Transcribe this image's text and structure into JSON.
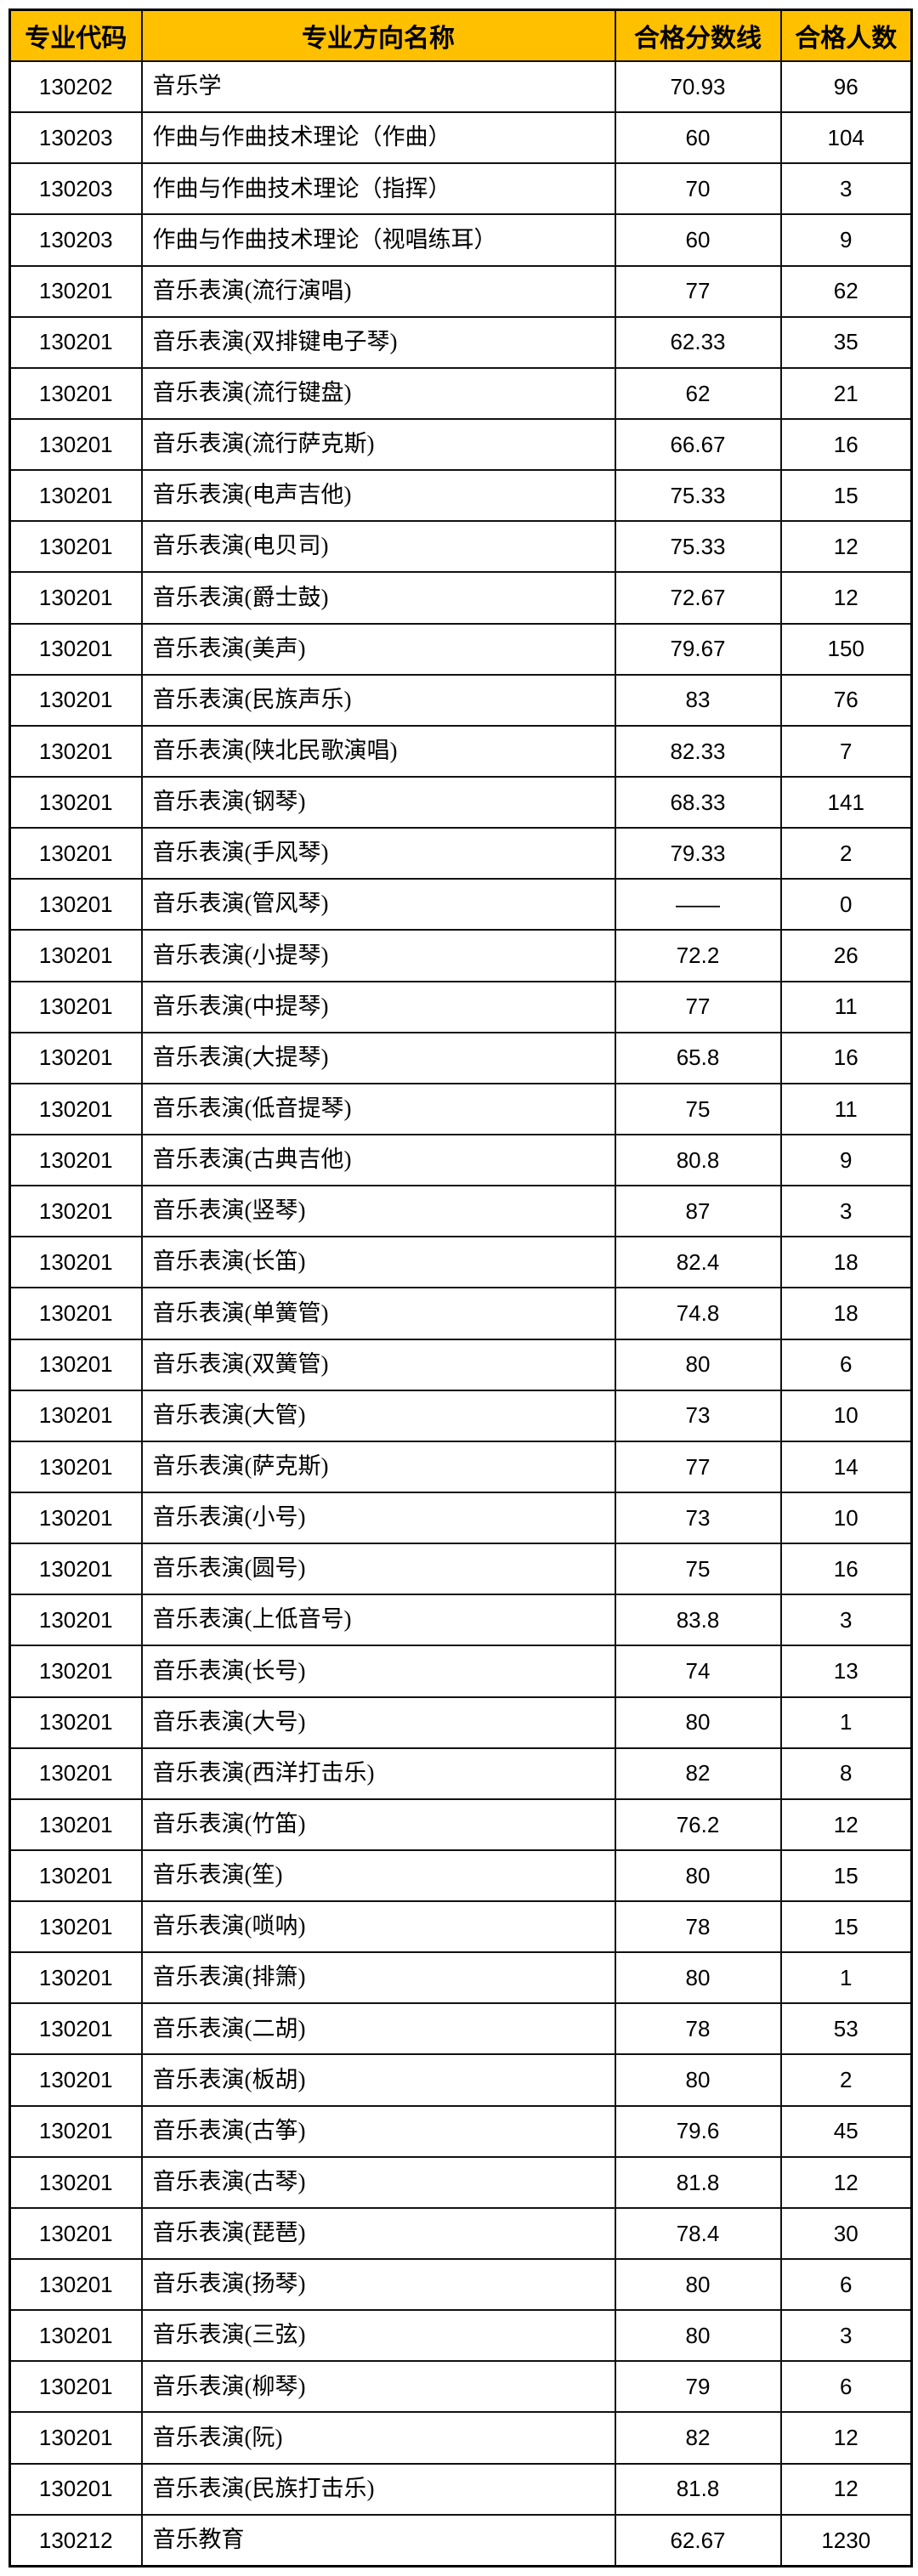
{
  "table": {
    "header_bg": "#FFC000",
    "border_color": "#000000",
    "columns": [
      {
        "label": "专业代码"
      },
      {
        "label": "专业方向名称"
      },
      {
        "label": "合格分数线"
      },
      {
        "label": "合格人数"
      }
    ],
    "rows": [
      {
        "code": "130202",
        "name": "音乐学",
        "score": "70.93",
        "count": "96"
      },
      {
        "code": "130203",
        "name": "作曲与作曲技术理论（作曲）",
        "score": "60",
        "count": "104"
      },
      {
        "code": "130203",
        "name": "作曲与作曲技术理论（指挥）",
        "score": "70",
        "count": "3"
      },
      {
        "code": "130203",
        "name": "作曲与作曲技术理论（视唱练耳）",
        "score": "60",
        "count": "9"
      },
      {
        "code": "130201",
        "name": "音乐表演(流行演唱)",
        "score": "77",
        "count": "62"
      },
      {
        "code": "130201",
        "name": "音乐表演(双排键电子琴)",
        "score": "62.33",
        "count": "35"
      },
      {
        "code": "130201",
        "name": "音乐表演(流行键盘)",
        "score": "62",
        "count": "21"
      },
      {
        "code": "130201",
        "name": "音乐表演(流行萨克斯)",
        "score": "66.67",
        "count": "16"
      },
      {
        "code": "130201",
        "name": "音乐表演(电声吉他)",
        "score": "75.33",
        "count": "15"
      },
      {
        "code": "130201",
        "name": "音乐表演(电贝司)",
        "score": "75.33",
        "count": "12"
      },
      {
        "code": "130201",
        "name": "音乐表演(爵士鼓)",
        "score": "72.67",
        "count": "12"
      },
      {
        "code": "130201",
        "name": "音乐表演(美声)",
        "score": "79.67",
        "count": "150"
      },
      {
        "code": "130201",
        "name": "音乐表演(民族声乐)",
        "score": "83",
        "count": "76"
      },
      {
        "code": "130201",
        "name": "音乐表演(陕北民歌演唱)",
        "score": "82.33",
        "count": "7"
      },
      {
        "code": "130201",
        "name": "音乐表演(钢琴)",
        "score": "68.33",
        "count": "141"
      },
      {
        "code": "130201",
        "name": "音乐表演(手风琴)",
        "score": "79.33",
        "count": "2"
      },
      {
        "code": "130201",
        "name": "音乐表演(管风琴)",
        "score": "——",
        "count": "0"
      },
      {
        "code": "130201",
        "name": "音乐表演(小提琴)",
        "score": "72.2",
        "count": "26"
      },
      {
        "code": "130201",
        "name": "音乐表演(中提琴)",
        "score": "77",
        "count": "11"
      },
      {
        "code": "130201",
        "name": "音乐表演(大提琴)",
        "score": "65.8",
        "count": "16"
      },
      {
        "code": "130201",
        "name": "音乐表演(低音提琴)",
        "score": "75",
        "count": "11"
      },
      {
        "code": "130201",
        "name": "音乐表演(古典吉他)",
        "score": "80.8",
        "count": "9"
      },
      {
        "code": "130201",
        "name": "音乐表演(竖琴)",
        "score": "87",
        "count": "3"
      },
      {
        "code": "130201",
        "name": "音乐表演(长笛)",
        "score": "82.4",
        "count": "18"
      },
      {
        "code": "130201",
        "name": "音乐表演(单簧管)",
        "score": "74.8",
        "count": "18"
      },
      {
        "code": "130201",
        "name": "音乐表演(双簧管)",
        "score": "80",
        "count": "6"
      },
      {
        "code": "130201",
        "name": "音乐表演(大管)",
        "score": "73",
        "count": "10"
      },
      {
        "code": "130201",
        "name": "音乐表演(萨克斯)",
        "score": "77",
        "count": "14"
      },
      {
        "code": "130201",
        "name": "音乐表演(小号)",
        "score": "73",
        "count": "10"
      },
      {
        "code": "130201",
        "name": "音乐表演(圆号)",
        "score": "75",
        "count": "16"
      },
      {
        "code": "130201",
        "name": "音乐表演(上低音号)",
        "score": "83.8",
        "count": "3"
      },
      {
        "code": "130201",
        "name": "音乐表演(长号)",
        "score": "74",
        "count": "13"
      },
      {
        "code": "130201",
        "name": "音乐表演(大号)",
        "score": "80",
        "count": "1"
      },
      {
        "code": "130201",
        "name": "音乐表演(西洋打击乐)",
        "score": "82",
        "count": "8"
      },
      {
        "code": "130201",
        "name": "音乐表演(竹笛)",
        "score": "76.2",
        "count": "12"
      },
      {
        "code": "130201",
        "name": "音乐表演(笙)",
        "score": "80",
        "count": "15"
      },
      {
        "code": "130201",
        "name": "音乐表演(唢呐)",
        "score": "78",
        "count": "15"
      },
      {
        "code": "130201",
        "name": "音乐表演(排箫)",
        "score": "80",
        "count": "1"
      },
      {
        "code": "130201",
        "name": "音乐表演(二胡)",
        "score": "78",
        "count": "53"
      },
      {
        "code": "130201",
        "name": "音乐表演(板胡)",
        "score": "80",
        "count": "2"
      },
      {
        "code": "130201",
        "name": "音乐表演(古筝)",
        "score": "79.6",
        "count": "45"
      },
      {
        "code": "130201",
        "name": "音乐表演(古琴)",
        "score": "81.8",
        "count": "12"
      },
      {
        "code": "130201",
        "name": "音乐表演(琵琶)",
        "score": "78.4",
        "count": "30"
      },
      {
        "code": "130201",
        "name": "音乐表演(扬琴)",
        "score": "80",
        "count": "6"
      },
      {
        "code": "130201",
        "name": "音乐表演(三弦)",
        "score": "80",
        "count": "3"
      },
      {
        "code": "130201",
        "name": "音乐表演(柳琴)",
        "score": "79",
        "count": "6"
      },
      {
        "code": "130201",
        "name": "音乐表演(阮)",
        "score": "82",
        "count": "12"
      },
      {
        "code": "130201",
        "name": "音乐表演(民族打击乐)",
        "score": "81.8",
        "count": "12"
      },
      {
        "code": "130212",
        "name": "音乐教育",
        "score": "62.67",
        "count": "1230"
      }
    ]
  }
}
